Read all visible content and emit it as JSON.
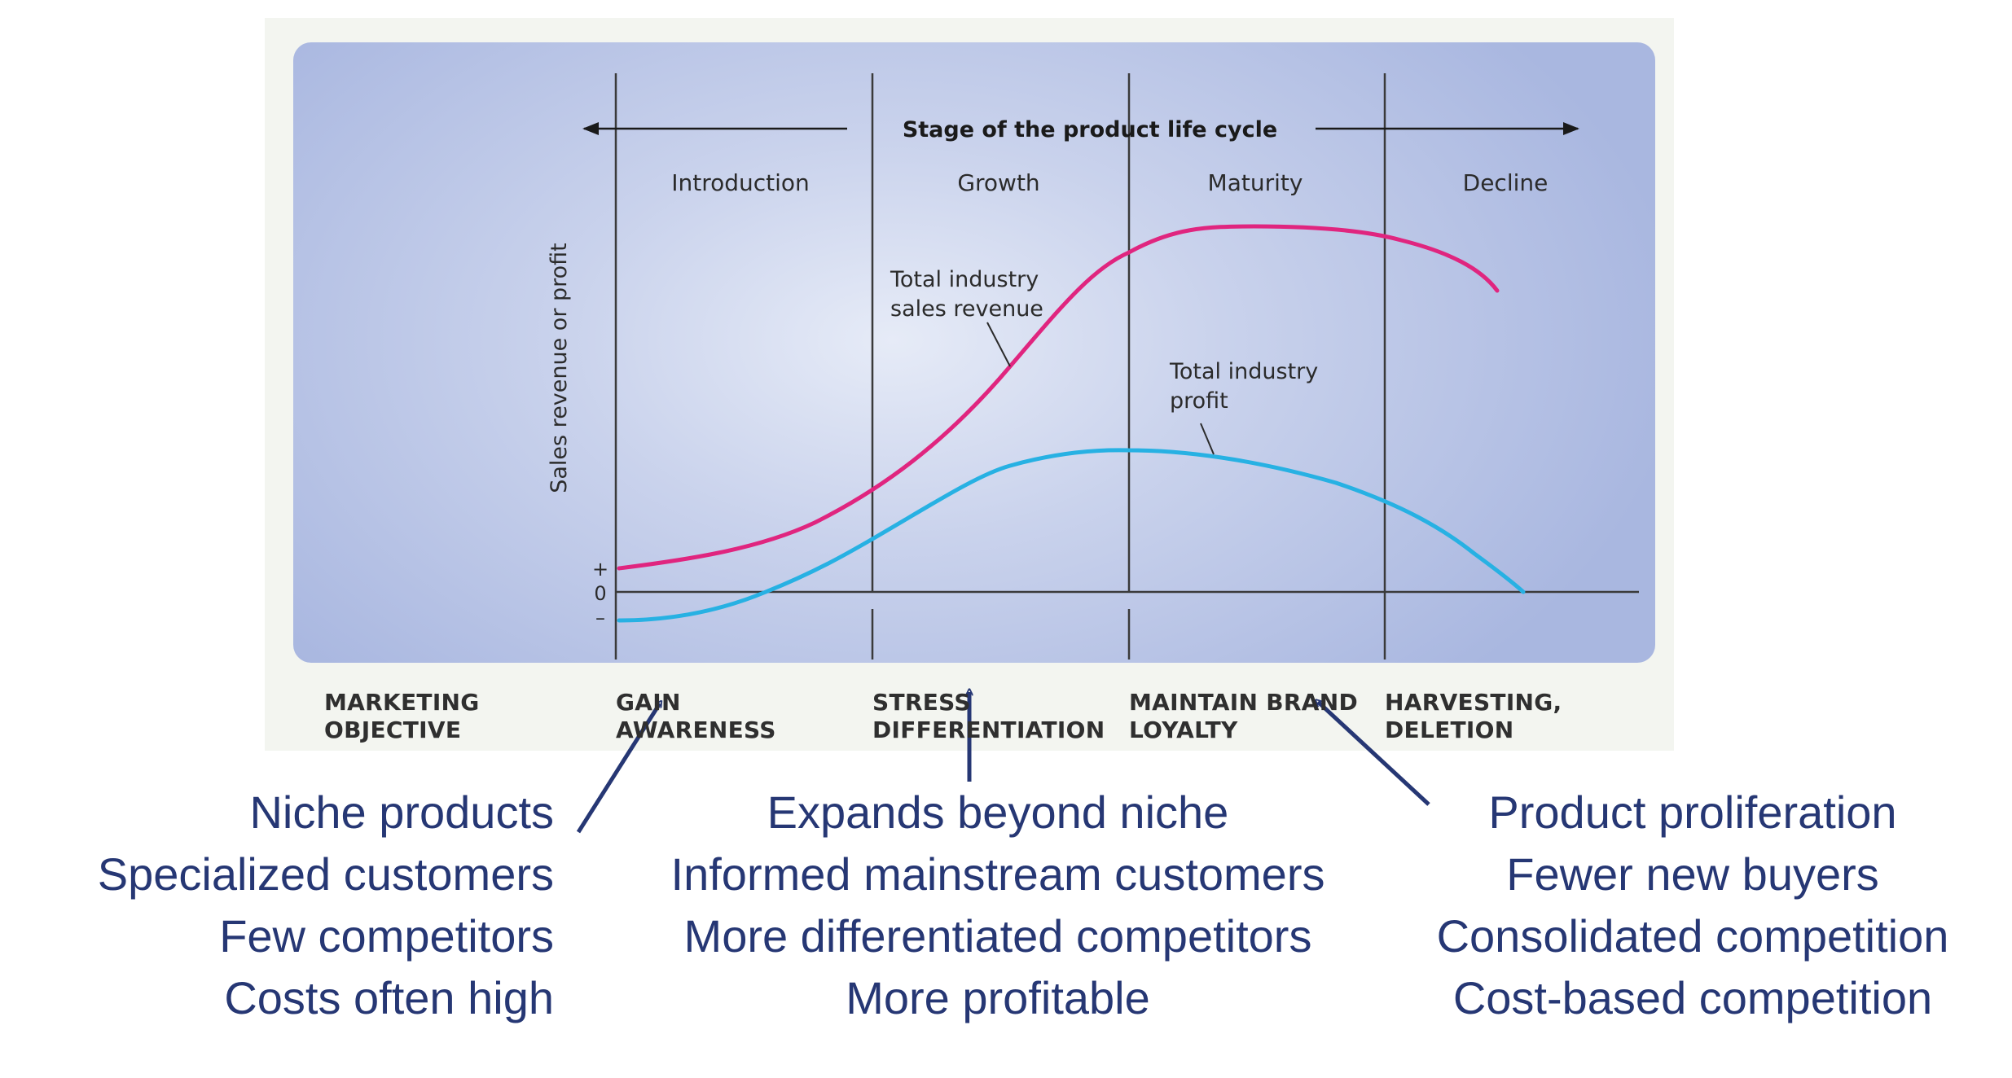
{
  "diagram": {
    "header": "Stage of the product life cycle",
    "stages": [
      "Introduction",
      "Growth",
      "Maturity",
      "Decline"
    ],
    "y_axis_label": "Sales revenue or profit",
    "y_axis_marks": {
      "plus": "+",
      "zero": "0",
      "minus": "–"
    },
    "curves": [
      {
        "name_lines": [
          "Total industry",
          "sales revenue"
        ],
        "color": "#e0257f"
      },
      {
        "name_lines": [
          "Total industry",
          "profit"
        ],
        "color": "#27b1e3"
      }
    ]
  },
  "marketing_objective": {
    "row_label": [
      "MARKETING",
      "OBJECTIVE"
    ],
    "values": [
      [
        "GAIN",
        "AWARENESS"
      ],
      [
        "STRESS",
        "DIFFERENTIATION"
      ],
      [
        "MAINTAIN BRAND",
        "LOYALTY"
      ],
      [
        "HARVESTING,",
        "DELETION"
      ]
    ]
  },
  "annotations": {
    "left": [
      "Niche products",
      "Specialized customers",
      "Few competitors",
      "Costs often high"
    ],
    "middle": [
      "Expands beyond niche",
      "Informed mainstream customers",
      "More differentiated competitors",
      "More profitable"
    ],
    "right": [
      "Product proliferation",
      "Fewer new buyers",
      "Consolidated competition",
      "Cost-based competition"
    ]
  },
  "colors": {
    "annotation_text": "#263774",
    "arrow": "#263774",
    "revenue_curve": "#e0257f",
    "profit_curve": "#27b1e3",
    "panel": "#b4c0e4"
  }
}
